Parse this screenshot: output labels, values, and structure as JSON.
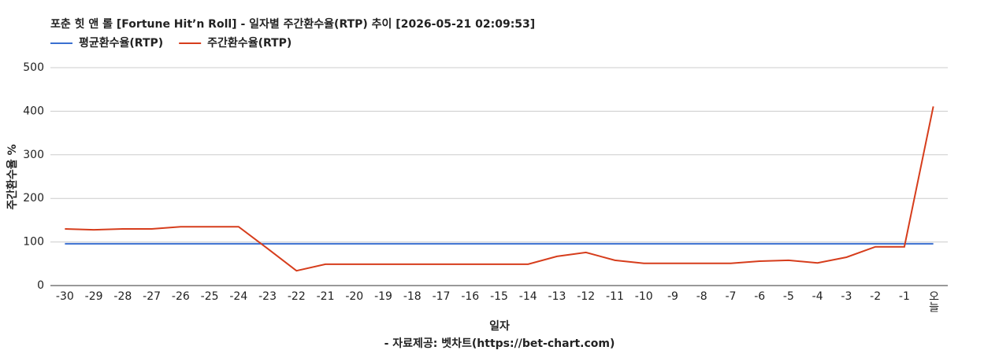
{
  "chart_data": {
    "type": "line",
    "title": "포춘 힛 앤 롤 [Fortune Hit’n Roll] - 일자별 주간환수율(RTP) 추이 [2026-05-21 02:09:53]",
    "x_label": "일자",
    "y_label": "주간환수율 %",
    "source": "- 자료제공: 벳차트(https://bet-chart.com)",
    "categories": [
      "-30",
      "-29",
      "-28",
      "-27",
      "-26",
      "-25",
      "-24",
      "-23",
      "-22",
      "-21",
      "-20",
      "-19",
      "-18",
      "-17",
      "-16",
      "-15",
      "-14",
      "-13",
      "-12",
      "-11",
      "-10",
      "-9",
      "-8",
      "-7",
      "-6",
      "-5",
      "-4",
      "-3",
      "-2",
      "-1",
      "오늘"
    ],
    "series": [
      {
        "name": "평균환수율(RTP)",
        "color": "#3a6fd0",
        "values": [
          96,
          96,
          96,
          96,
          96,
          96,
          96,
          96,
          96,
          96,
          96,
          96,
          96,
          96,
          96,
          96,
          96,
          96,
          96,
          96,
          96,
          96,
          96,
          96,
          96,
          96,
          96,
          96,
          96,
          96,
          96
        ]
      },
      {
        "name": "주간환수율(RTP)",
        "color": "#d63d1c",
        "values": [
          130,
          128,
          130,
          130,
          135,
          135,
          135,
          85,
          34,
          49,
          49,
          49,
          49,
          49,
          49,
          49,
          49,
          67,
          76,
          58,
          51,
          51,
          51,
          51,
          56,
          58,
          52,
          65,
          89,
          89,
          411
        ]
      }
    ],
    "ylim": [
      0,
      500
    ],
    "yticks": [
      0,
      100,
      200,
      300,
      400,
      500
    ],
    "grid": true
  }
}
